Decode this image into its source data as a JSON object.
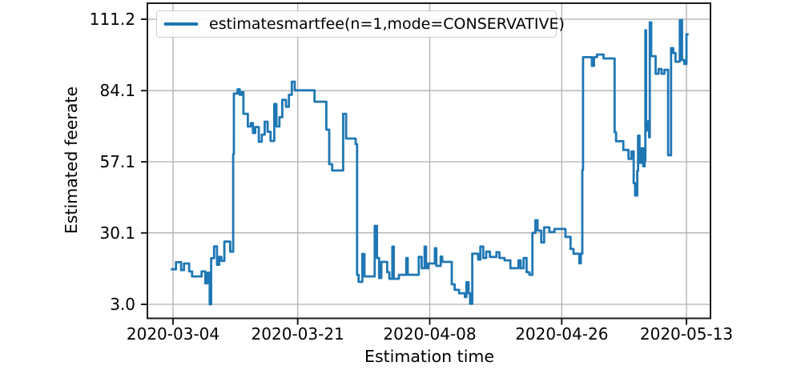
{
  "figure": {
    "background": "#ffffff",
    "x_axis_label": "Estimation time",
    "y_axis_label": "Estimated feerate",
    "legend": {
      "label": "estimatesmartfee(n=1,mode=CONSERVATIVE)",
      "position": "upper left"
    }
  },
  "colors": {
    "line": "#1f77b4",
    "grid": "#b0b0b0",
    "spine": "#1c1c1c",
    "text": "#000000",
    "legend_border": "#cccccc"
  },
  "chart_data": {
    "type": "line",
    "step_mode": "post",
    "title": "",
    "xlabel": "Estimation time",
    "ylabel": "Estimated feerate",
    "grid": true,
    "legend_position": "upper left",
    "x_unit": "days since 2020-03-04",
    "x_tick_labels": [
      "2020-03-04",
      "2020-03-21",
      "2020-04-08",
      "2020-04-26",
      "2020-05-13"
    ],
    "x_tick_days": [
      0,
      17,
      35,
      53,
      70
    ],
    "y_ticks": [
      3.0,
      30.1,
      57.1,
      84.1,
      111.2
    ],
    "xlim_days": [
      -3.4,
      73.3
    ],
    "ylim": [
      -2.2,
      117.3
    ],
    "series": [
      {
        "name": "estimatesmartfee(n=1,mode=CONSERVATIVE)",
        "color": "#1f77b4",
        "points": [
          [
            -0.3,
            16.3
          ],
          [
            0.4,
            19.0
          ],
          [
            1.1,
            16.0
          ],
          [
            1.5,
            18.5
          ],
          [
            2.2,
            15.5
          ],
          [
            2.6,
            13.6
          ],
          [
            3.9,
            15.5
          ],
          [
            4.4,
            11.0
          ],
          [
            4.7,
            15.0
          ],
          [
            5.0,
            3.0
          ],
          [
            5.2,
            20.5
          ],
          [
            5.6,
            25.0
          ],
          [
            6.0,
            18.0
          ],
          [
            6.3,
            21.0
          ],
          [
            6.6,
            19.5
          ],
          [
            7.0,
            26.8
          ],
          [
            7.8,
            23.0
          ],
          [
            8.2,
            60.0
          ],
          [
            8.3,
            83.0
          ],
          [
            8.8,
            84.6
          ],
          [
            9.1,
            82.5
          ],
          [
            9.4,
            83.5
          ],
          [
            9.6,
            75.3
          ],
          [
            10.2,
            70.5
          ],
          [
            10.6,
            71.8
          ],
          [
            10.9,
            68.0
          ],
          [
            11.2,
            70.3
          ],
          [
            11.7,
            64.7
          ],
          [
            12.1,
            67.4
          ],
          [
            12.5,
            72.3
          ],
          [
            12.9,
            68.5
          ],
          [
            13.3,
            65.0
          ],
          [
            13.8,
            79.0
          ],
          [
            14.1,
            70.5
          ],
          [
            14.5,
            74.0
          ],
          [
            14.9,
            80.6
          ],
          [
            15.4,
            78.0
          ],
          [
            15.8,
            82.5
          ],
          [
            16.2,
            87.5
          ],
          [
            16.6,
            84.2
          ],
          [
            19.3,
            79.9
          ],
          [
            20.9,
            69.3
          ],
          [
            21.3,
            56.2
          ],
          [
            21.7,
            53.8
          ],
          [
            23.2,
            75.3
          ],
          [
            23.6,
            65.9
          ],
          [
            24.9,
            63.8
          ],
          [
            25.1,
            14.2
          ],
          [
            25.3,
            11.5
          ],
          [
            25.8,
            22.1
          ],
          [
            26.1,
            13.6
          ],
          [
            27.5,
            32.8
          ],
          [
            27.8,
            20.6
          ],
          [
            28.1,
            13.0
          ],
          [
            28.4,
            19.1
          ],
          [
            29.2,
            15.2
          ],
          [
            29.5,
            12.7
          ],
          [
            29.9,
            24.9
          ],
          [
            30.1,
            12.7
          ],
          [
            30.8,
            14.2
          ],
          [
            31.8,
            20.6
          ],
          [
            32.0,
            14.2
          ],
          [
            33.5,
            21.0
          ],
          [
            33.9,
            16.7
          ],
          [
            34.3,
            24.9
          ],
          [
            34.5,
            16.7
          ],
          [
            34.8,
            18.5
          ],
          [
            35.7,
            24.3
          ],
          [
            35.9,
            17.6
          ],
          [
            36.5,
            21.1
          ],
          [
            36.7,
            19.1
          ],
          [
            38.0,
            10.6
          ],
          [
            38.4,
            8.5
          ],
          [
            39.0,
            7.2
          ],
          [
            39.8,
            5.8
          ],
          [
            40.0,
            11.4
          ],
          [
            40.3,
            7.2
          ],
          [
            40.5,
            3.2
          ],
          [
            40.8,
            22.2
          ],
          [
            41.6,
            20.0
          ],
          [
            41.9,
            24.9
          ],
          [
            42.3,
            20.6
          ],
          [
            42.7,
            23.0
          ],
          [
            43.2,
            21.0
          ],
          [
            44.1,
            22.8
          ],
          [
            44.5,
            20.6
          ],
          [
            45.2,
            19.7
          ],
          [
            46.0,
            16.7
          ],
          [
            47.1,
            19.7
          ],
          [
            47.4,
            16.7
          ],
          [
            47.8,
            20.6
          ],
          [
            48.2,
            15.2
          ],
          [
            48.6,
            14.2
          ],
          [
            49.0,
            30.1
          ],
          [
            49.4,
            34.9
          ],
          [
            49.7,
            31.0
          ],
          [
            50.2,
            26.5
          ],
          [
            50.6,
            32.2
          ],
          [
            51.3,
            30.4
          ],
          [
            52.0,
            31.6
          ],
          [
            53.5,
            28.6
          ],
          [
            54.2,
            24.0
          ],
          [
            54.6,
            22.2
          ],
          [
            55.4,
            18.6
          ],
          [
            55.6,
            22.2
          ],
          [
            55.8,
            54.0
          ],
          [
            55.9,
            96.8
          ],
          [
            57.1,
            93.5
          ],
          [
            57.4,
            96.8
          ],
          [
            57.8,
            97.8
          ],
          [
            58.7,
            96.3
          ],
          [
            60.2,
            68.3
          ],
          [
            60.4,
            64.9
          ],
          [
            61.4,
            61.6
          ],
          [
            62.1,
            58.2
          ],
          [
            62.5,
            61.0
          ],
          [
            62.8,
            49.0
          ],
          [
            63.0,
            44.3
          ],
          [
            63.3,
            53.6
          ],
          [
            63.4,
            67.0
          ],
          [
            63.6,
            56.7
          ],
          [
            63.9,
            62.2
          ],
          [
            64.1,
            55.4
          ],
          [
            64.3,
            57.6
          ],
          [
            64.4,
            107.0
          ],
          [
            64.5,
            69.0
          ],
          [
            64.8,
            72.5
          ],
          [
            64.9,
            66.4
          ],
          [
            65.0,
            110.0
          ],
          [
            65.2,
            97.2
          ],
          [
            65.8,
            90.5
          ],
          [
            66.2,
            92.3
          ],
          [
            66.6,
            90.5
          ],
          [
            67.0,
            92.0
          ],
          [
            67.5,
            59.6
          ],
          [
            67.9,
            100.2
          ],
          [
            68.2,
            98.4
          ],
          [
            68.5,
            95.1
          ],
          [
            69.1,
            110.9
          ],
          [
            69.4,
            95.7
          ],
          [
            69.7,
            94.2
          ],
          [
            70.0,
            105.5
          ],
          [
            70.3,
            105.5
          ]
        ]
      }
    ]
  }
}
